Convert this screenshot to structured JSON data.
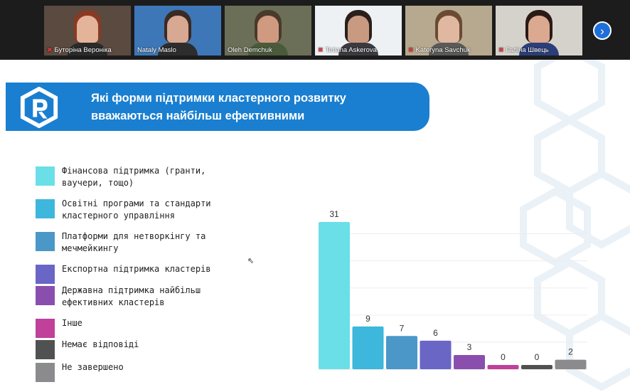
{
  "participants": [
    {
      "name": "Буторіна Вероніка",
      "muted": true,
      "bg": "#5a4a40",
      "skin": "#e3b49a",
      "hair": "#8a3a22",
      "cloth": "#2a2a2a"
    },
    {
      "name": "Nataly Maslo",
      "muted": false,
      "bg": "#3d77b8",
      "skin": "#d7a892",
      "hair": "#3a2a22",
      "cloth": "#2d2d2d"
    },
    {
      "name": "Oleh Demchuk",
      "muted": false,
      "bg": "#6b6f58",
      "skin": "#d09a80",
      "hair": "#4a3a2a",
      "cloth": "#4a5a3a"
    },
    {
      "name": "Tetiana Askerova",
      "muted": true,
      "bg": "#eef1f4",
      "skin": "#c99a82",
      "hair": "#2a1f1a",
      "cloth": "#3a3a40"
    },
    {
      "name": "Kateryna Savchuk",
      "muted": true,
      "bg": "#b6a98f",
      "skin": "#e0b7a0",
      "hair": "#6a4a32",
      "cloth": "#5a5a58"
    },
    {
      "name": "Галіна Швець",
      "muted": true,
      "bg": "#d5d2cc",
      "skin": "#dba890",
      "hair": "#2a1a16",
      "cloth": "#2b3e7a"
    }
  ],
  "slide": {
    "title_line1": "Які форми підтримки кластерного розвитку",
    "title_line2": "вважаються найбільш ефективними"
  },
  "legend": [
    {
      "line1": "Фінансова підтримка (гранти,",
      "line2": "ваучери, тощо)",
      "color": "#6adfe8"
    },
    {
      "line1": "Освітні програми та стандарти",
      "line2": "кластерного управління",
      "color": "#3db7dc"
    },
    {
      "line1": "Платформи для нетворкінгу та",
      "line2": "мечмейкингу",
      "color": "#4a97c8"
    },
    {
      "line1": "Експортна підтримка кластерів",
      "line2": "",
      "color": "#6a66c6"
    },
    {
      "line1": "Державна підтримка найбільш",
      "line2": "ефективних кластерів",
      "color": "#8a4fae"
    },
    {
      "line1": "Інше",
      "line2": "",
      "color": "#c0409a"
    },
    {
      "line1": "Немає відповіді",
      "line2": "",
      "color": "#4f5250"
    },
    {
      "line1": "Не завершено",
      "line2": "",
      "color": "#8b8a8c"
    }
  ],
  "chart_data": {
    "type": "bar",
    "categories": [
      "Фінансова підтримка (гранти, ваучери, тощо)",
      "Освітні програми та стандарти кластерного управління",
      "Платформи для нетворкінгу та мечмейкингу",
      "Експортна підтримка кластерів",
      "Державна підтримка найбільш ефективних кластерів",
      "Інше",
      "Немає відповіді",
      "Не завершено"
    ],
    "values": [
      31,
      9,
      7,
      6,
      3,
      0,
      0,
      2
    ],
    "colors": [
      "#6adfe8",
      "#3db7dc",
      "#4a97c8",
      "#6a66c6",
      "#8a4fae",
      "#c0409a",
      "#4f5250",
      "#8b8a8c"
    ],
    "ylim": [
      0,
      31
    ],
    "grid": true
  }
}
